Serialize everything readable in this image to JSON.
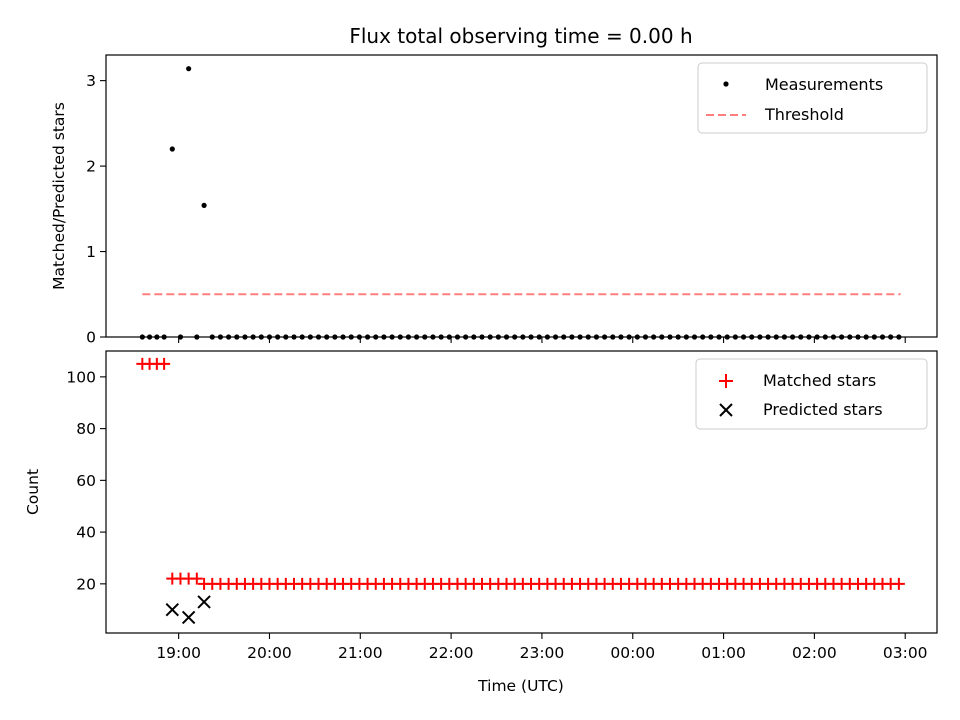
{
  "chart_data": {
    "type": "scatter",
    "title": "Flux total observing time = 0.00 h",
    "xlabel": "Time (UTC)",
    "x_tick_labels": [
      "19:00",
      "20:00",
      "21:00",
      "22:00",
      "23:00",
      "00:00",
      "01:00",
      "02:00",
      "03:00"
    ],
    "x_ticks_hours": [
      19,
      20,
      21,
      22,
      23,
      24,
      25,
      26,
      27
    ],
    "xlim_hours": [
      18.2,
      27.35
    ],
    "x_values_hours": [
      18.6,
      18.68,
      18.76,
      18.84,
      18.93,
      19.02,
      19.11,
      19.2,
      19.28,
      19.37,
      19.46,
      19.55,
      19.64,
      19.73,
      19.82,
      19.91,
      20.0,
      20.09,
      20.18,
      20.27,
      20.36,
      20.45,
      20.54,
      20.63,
      20.72,
      20.81,
      20.9,
      20.99,
      21.08,
      21.17,
      21.26,
      21.35,
      21.44,
      21.53,
      21.62,
      21.71,
      21.8,
      21.89,
      21.98,
      22.07,
      22.16,
      22.25,
      22.34,
      22.43,
      22.52,
      22.61,
      22.7,
      22.79,
      22.88,
      22.97,
      23.06,
      23.15,
      23.24,
      23.33,
      23.42,
      23.51,
      23.6,
      23.69,
      23.78,
      23.87,
      23.96,
      24.05,
      24.14,
      24.23,
      24.32,
      24.41,
      24.5,
      24.59,
      24.68,
      24.77,
      24.86,
      24.95,
      25.04,
      25.13,
      25.22,
      25.31,
      25.4,
      25.49,
      25.58,
      25.67,
      25.76,
      25.85,
      25.94,
      26.03,
      26.12,
      26.21,
      26.3,
      26.39,
      26.48,
      26.57,
      26.66,
      26.75,
      26.84,
      26.93
    ],
    "panels": [
      {
        "ylabel": "Matched/Predicted stars",
        "ylim": [
          0,
          3.3
        ],
        "yticks": [
          0,
          1,
          2,
          3
        ],
        "series": [
          {
            "name": "Measurements",
            "marker": "dot",
            "color": "#000000",
            "values": [
              0,
              0,
              0,
              0,
              2.2,
              0,
              3.14,
              0,
              1.54,
              0,
              0,
              0,
              0,
              0,
              0,
              0,
              0,
              0,
              0,
              0,
              0,
              0,
              0,
              0,
              0,
              0,
              0,
              0,
              0,
              0,
              0,
              0,
              0,
              0,
              0,
              0,
              0,
              0,
              0,
              0,
              0,
              0,
              0,
              0,
              0,
              0,
              0,
              0,
              0,
              0,
              0,
              0,
              0,
              0,
              0,
              0,
              0,
              0,
              0,
              0,
              0,
              0,
              0,
              0,
              0,
              0,
              0,
              0,
              0,
              0,
              0,
              0,
              0,
              0,
              0,
              0,
              0,
              0,
              0,
              0,
              0,
              0,
              0,
              0,
              0,
              0,
              0,
              0,
              0,
              0,
              0,
              0,
              0,
              0
            ]
          },
          {
            "name": "Threshold",
            "marker": "dashed-line",
            "color": "#ff7f7f",
            "value": 0.5,
            "x_range_hours": [
              18.6,
              26.95
            ]
          }
        ],
        "legend": "top-right"
      },
      {
        "ylabel": "Count",
        "ylim": [
          1,
          110
        ],
        "yticks": [
          20,
          40,
          60,
          80,
          100
        ],
        "series": [
          {
            "name": "Matched stars",
            "marker": "plus",
            "color": "#ff0000",
            "values": [
              105,
              105,
              105,
              105,
              22,
              22,
              22,
              22,
              20,
              20,
              20,
              20,
              20,
              20,
              20,
              20,
              20,
              20,
              20,
              20,
              20,
              20,
              20,
              20,
              20,
              20,
              20,
              20,
              20,
              20,
              20,
              20,
              20,
              20,
              20,
              20,
              20,
              20,
              20,
              20,
              20,
              20,
              20,
              20,
              20,
              20,
              20,
              20,
              20,
              20,
              20,
              20,
              20,
              20,
              20,
              20,
              20,
              20,
              20,
              20,
              20,
              20,
              20,
              20,
              20,
              20,
              20,
              20,
              20,
              20,
              20,
              20,
              20,
              20,
              20,
              20,
              20,
              20,
              20,
              20,
              20,
              20,
              20,
              20,
              20,
              20,
              20,
              20,
              20,
              20,
              20,
              20,
              20,
              20
            ]
          },
          {
            "name": "Predicted stars",
            "marker": "cross",
            "color": "#000000",
            "points": [
              {
                "x_hour": 18.93,
                "y": 10
              },
              {
                "x_hour": 19.11,
                "y": 7
              },
              {
                "x_hour": 19.28,
                "y": 13
              }
            ]
          }
        ],
        "legend": "top-right"
      }
    ]
  }
}
